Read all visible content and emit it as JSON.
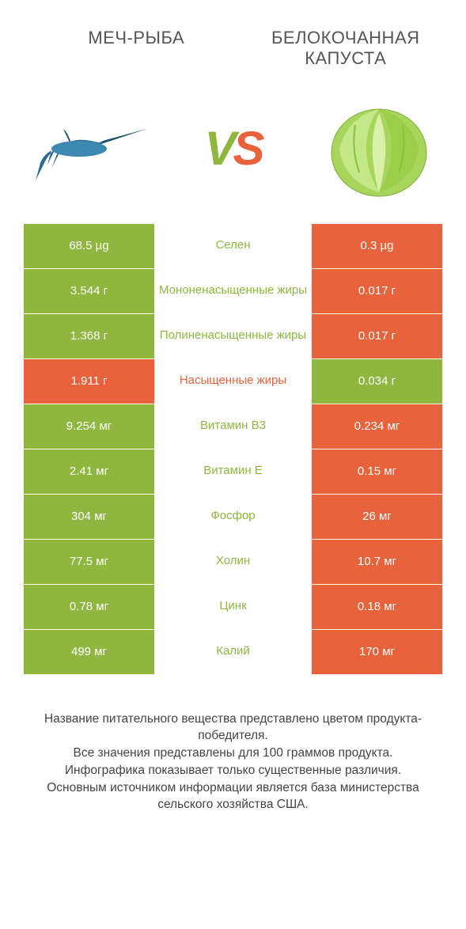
{
  "colors": {
    "green": "#8fb63f",
    "orange": "#e8633c",
    "text_dark": "#555555",
    "footer_text": "#444444",
    "background": "#ffffff"
  },
  "typography": {
    "title_fontsize": 22,
    "vs_fontsize": 60,
    "cell_fontsize": 15,
    "footer_fontsize": 15.5
  },
  "header": {
    "left_title": "МЕЧ-РЫБА",
    "right_title": "БЕЛОКОЧАННАЯ КАПУСТА"
  },
  "vs": {
    "v": "V",
    "s": "S"
  },
  "images": {
    "left_alt": "swordfish",
    "right_alt": "cabbage"
  },
  "rows": [
    {
      "left": "68.5 µg",
      "name": "Селен",
      "right": "0.3 µg",
      "winner": "left"
    },
    {
      "left": "3.544 г",
      "name": "Мононенасыщенные жиры",
      "right": "0.017 г",
      "winner": "left"
    },
    {
      "left": "1.368 г",
      "name": "Полиненасыщенные жиры",
      "right": "0.017 г",
      "winner": "left"
    },
    {
      "left": "1.911 г",
      "name": "Насыщенные жиры",
      "right": "0.034 г",
      "winner": "right"
    },
    {
      "left": "9.254 мг",
      "name": "Витамин B3",
      "right": "0.234 мг",
      "winner": "left"
    },
    {
      "left": "2.41 мг",
      "name": "Витамин E",
      "right": "0.15 мг",
      "winner": "left"
    },
    {
      "left": "304 мг",
      "name": "Фосфор",
      "right": "26 мг",
      "winner": "left"
    },
    {
      "left": "77.5 мг",
      "name": "Холин",
      "right": "10.7 мг",
      "winner": "left"
    },
    {
      "left": "0.78 мг",
      "name": "Цинк",
      "right": "0.18 мг",
      "winner": "left"
    },
    {
      "left": "499 мг",
      "name": "Калий",
      "right": "170 мг",
      "winner": "left"
    }
  ],
  "footer": {
    "line1": "Название питательного вещества представлено цветом продукта-победителя.",
    "line2": "Все значения представлены для 100 граммов продукта.",
    "line3": "Инфографика показывает только существенные различия.",
    "line4": "Основным источником информации является база министерства сельского хозяйства США."
  }
}
